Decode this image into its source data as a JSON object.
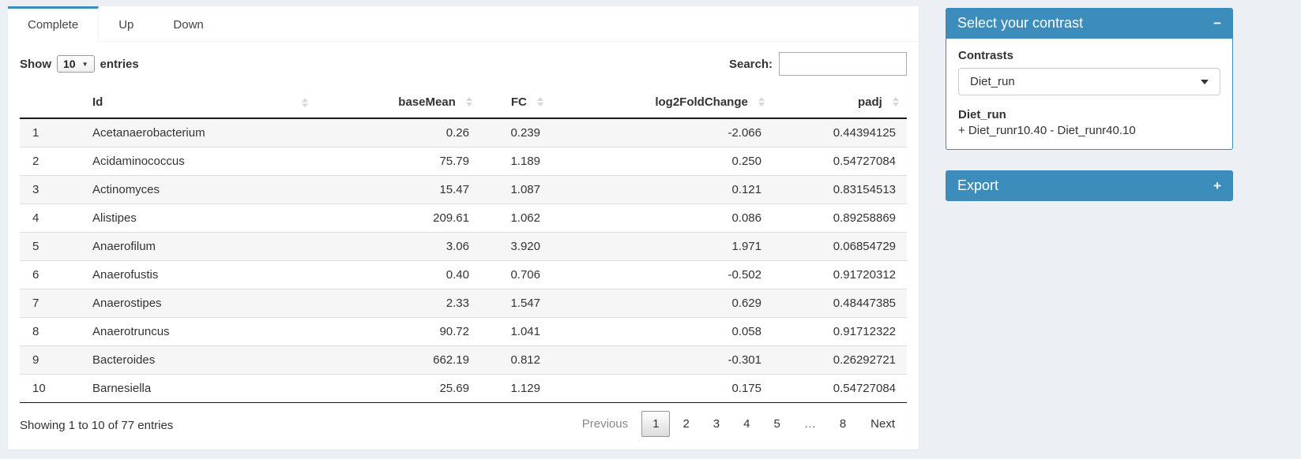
{
  "tabs": [
    {
      "label": "Complete",
      "active": true
    },
    {
      "label": "Up",
      "active": false
    },
    {
      "label": "Down",
      "active": false
    }
  ],
  "controls": {
    "show_label": "Show",
    "page_length": "10",
    "entries_label": "entries",
    "search_label": "Search:",
    "search_value": ""
  },
  "table": {
    "columns": [
      "Id",
      "baseMean",
      "FC",
      "log2FoldChange",
      "padj"
    ],
    "rows": [
      {
        "index": "1",
        "id": "Acetanaerobacterium",
        "baseMean": "0.26",
        "fc": "0.239",
        "log2fc": "-2.066",
        "padj": "0.44394125"
      },
      {
        "index": "2",
        "id": "Acidaminococcus",
        "baseMean": "75.79",
        "fc": "1.189",
        "log2fc": "0.250",
        "padj": "0.54727084"
      },
      {
        "index": "3",
        "id": "Actinomyces",
        "baseMean": "15.47",
        "fc": "1.087",
        "log2fc": "0.121",
        "padj": "0.83154513"
      },
      {
        "index": "4",
        "id": "Alistipes",
        "baseMean": "209.61",
        "fc": "1.062",
        "log2fc": "0.086",
        "padj": "0.89258869"
      },
      {
        "index": "5",
        "id": "Anaerofilum",
        "baseMean": "3.06",
        "fc": "3.920",
        "log2fc": "1.971",
        "padj": "0.06854729"
      },
      {
        "index": "6",
        "id": "Anaerofustis",
        "baseMean": "0.40",
        "fc": "0.706",
        "log2fc": "-0.502",
        "padj": "0.91720312"
      },
      {
        "index": "7",
        "id": "Anaerostipes",
        "baseMean": "2.33",
        "fc": "1.547",
        "log2fc": "0.629",
        "padj": "0.48447385"
      },
      {
        "index": "8",
        "id": "Anaerotruncus",
        "baseMean": "90.72",
        "fc": "1.041",
        "log2fc": "0.058",
        "padj": "0.91712322"
      },
      {
        "index": "9",
        "id": "Bacteroides",
        "baseMean": "662.19",
        "fc": "0.812",
        "log2fc": "-0.301",
        "padj": "0.26292721"
      },
      {
        "index": "10",
        "id": "Barnesiella",
        "baseMean": "25.69",
        "fc": "1.129",
        "log2fc": "0.175",
        "padj": "0.54727084"
      }
    ]
  },
  "footer": {
    "info": "Showing 1 to 10 of 77 entries",
    "pagination": {
      "previous_label": "Previous",
      "pages": [
        "1",
        "2",
        "3",
        "4",
        "5",
        "…",
        "8"
      ],
      "current": "1",
      "next_label": "Next"
    }
  },
  "sidebar": {
    "contrast_panel": {
      "title": "Select your contrast",
      "collapse_icon": "−",
      "contrasts_label": "Contrasts",
      "selected_contrast": "Diet_run",
      "contrast_name": "Diet_run",
      "contrast_formula": "+ Diet_runr10.40 - Diet_runr40.10"
    },
    "export_panel": {
      "title": "Export",
      "expand_icon": "+"
    }
  },
  "icons": {
    "sort": "up-down-sort-arrows",
    "length_caret": "▼"
  },
  "colors": {
    "primary": "#3c8dbc",
    "page_bg": "#ecf0f5",
    "stripe": "#f6f6f6"
  }
}
